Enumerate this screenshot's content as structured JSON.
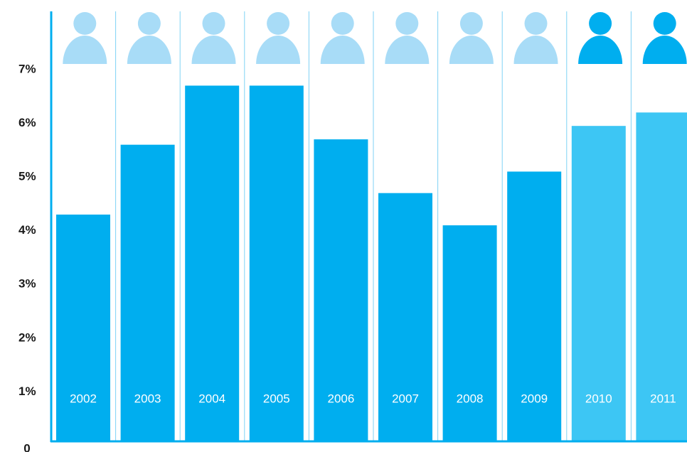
{
  "chart_data": {
    "type": "bar",
    "categories": [
      "2002",
      "2003",
      "2004",
      "2005",
      "2006",
      "2007",
      "2008",
      "2009",
      "2010",
      "2011"
    ],
    "values": [
      4.3,
      5.6,
      6.7,
      6.7,
      5.7,
      4.7,
      4.1,
      5.1,
      5.95,
      6.2
    ],
    "highlighted": [
      "2010",
      "2011"
    ],
    "y_ticks": [
      "0",
      "1%",
      "2%",
      "3%",
      "4%",
      "5%",
      "6%",
      "7%"
    ],
    "ylim": [
      0,
      8
    ],
    "title": "",
    "xlabel": "",
    "ylabel": "",
    "grid": "vertical separators",
    "icon": "person-icon"
  },
  "colors": {
    "bar": "#00aeef",
    "bar_highlight": "#3dc6f4",
    "icon": "#a8dcf7",
    "icon_highlight": "#00aeef",
    "axis": "#00aeef",
    "separator": "#7fd2f5"
  }
}
